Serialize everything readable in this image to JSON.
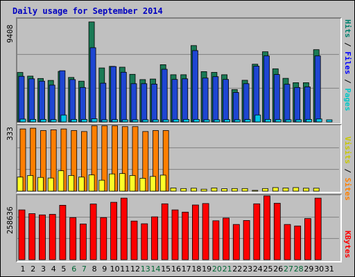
{
  "title": "Daily usage for September 2014",
  "colors": {
    "hits": "#1a7a55",
    "files": "#1e46d2",
    "pages": "#00c8e6",
    "visits": "#ffff28",
    "sites": "#ff7f00",
    "kbytes": "#ff0000",
    "weekday_label": "#000000",
    "weekend_label": "#006633",
    "label_hits": "#00806e",
    "label_files": "#0000ff",
    "label_pages": "#00c8c8",
    "label_visits": "#c8c800",
    "label_sites": "#ff8000",
    "label_kbytes": "#ff0000"
  },
  "legend": {
    "top": [
      {
        "text": "Hits",
        "color": "#00806e"
      },
      {
        "text": " / ",
        "color": "#000000"
      },
      {
        "text": "Files",
        "color": "#0000ff"
      },
      {
        "text": " / ",
        "color": "#000000"
      },
      {
        "text": "Pages",
        "color": "#00c8c8"
      }
    ],
    "middle": [
      {
        "text": "Visits",
        "color": "#c8c800"
      },
      {
        "text": " / ",
        "color": "#000000"
      },
      {
        "text": "Sites",
        "color": "#ff8000"
      }
    ],
    "bottom": [
      {
        "text": "KBytes",
        "color": "#ff0000"
      }
    ]
  },
  "chart_data": [
    {
      "type": "bar",
      "panel": "hits-files-pages",
      "max_label": "9408",
      "ylim": [
        0,
        9408
      ],
      "categories": [
        "1",
        "2",
        "3",
        "4",
        "5",
        "6",
        "7",
        "8",
        "9",
        "10",
        "11",
        "12",
        "13",
        "14",
        "15",
        "16",
        "17",
        "18",
        "19",
        "20",
        "21",
        "22",
        "23",
        "24",
        "25",
        "26",
        "27",
        "28",
        "29",
        "30",
        "31"
      ],
      "weekend": [
        "6",
        "7",
        "13",
        "14",
        "20",
        "21",
        "27",
        "28"
      ],
      "series": [
        {
          "name": "Hits",
          "values": [
            4600,
            4260,
            4040,
            3860,
            4700,
            4140,
            3790,
            9300,
            5020,
            5170,
            5090,
            4430,
            3940,
            3990,
            5320,
            4390,
            4390,
            7100,
            4680,
            4610,
            4390,
            3010,
            3870,
            5370,
            6530,
            4940,
            4050,
            3650,
            3650,
            6720,
            0
          ]
        },
        {
          "name": "Files",
          "values": [
            4240,
            4010,
            3790,
            3420,
            4760,
            3940,
            3200,
            6900,
            3600,
            5150,
            4620,
            3560,
            3560,
            3520,
            4900,
            3950,
            4010,
            6640,
            4080,
            4210,
            3950,
            2740,
            3560,
            5190,
            6140,
            4410,
            3500,
            3200,
            3260,
            6140,
            0
          ]
        },
        {
          "name": "Pages",
          "values": [
            260,
            230,
            230,
            210,
            640,
            230,
            230,
            290,
            200,
            210,
            200,
            200,
            200,
            200,
            200,
            230,
            230,
            230,
            200,
            200,
            210,
            200,
            220,
            640,
            230,
            210,
            200,
            200,
            230,
            270,
            0
          ]
        }
      ]
    },
    {
      "type": "bar",
      "panel": "visits-sites",
      "max_label": "333",
      "ylim": [
        0,
        333
      ],
      "categories": [
        "1",
        "2",
        "3",
        "4",
        "5",
        "6",
        "7",
        "8",
        "9",
        "10",
        "11",
        "12",
        "13",
        "14",
        "15",
        "16",
        "17",
        "18",
        "19",
        "20",
        "21",
        "22",
        "23",
        "24",
        "25",
        "26",
        "27",
        "28",
        "29",
        "30",
        "31"
      ],
      "weekend": [
        "6",
        "7",
        "13",
        "14",
        "20",
        "21",
        "27",
        "28"
      ],
      "series": [
        {
          "name": "Sites",
          "values": [
            318,
            322,
            310,
            314,
            318,
            310,
            305,
            334,
            334,
            334,
            330,
            330,
            305,
            310,
            310,
            0,
            0,
            0,
            0,
            0,
            0,
            0,
            0,
            0,
            0,
            0,
            0,
            0,
            0,
            0,
            0
          ]
        },
        {
          "name": "Visits",
          "values": [
            72,
            80,
            70,
            67,
            104,
            80,
            72,
            83,
            56,
            88,
            90,
            80,
            66,
            75,
            82,
            16,
            13,
            15,
            10,
            16,
            12,
            13,
            13,
            4,
            13,
            18,
            16,
            18,
            15,
            15,
            0
          ]
        }
      ]
    },
    {
      "type": "bar",
      "panel": "kbytes",
      "max_label": "258636",
      "ylim": [
        0,
        258636
      ],
      "categories": [
        "1",
        "2",
        "3",
        "4",
        "5",
        "6",
        "7",
        "8",
        "9",
        "10",
        "11",
        "12",
        "13",
        "14",
        "15",
        "16",
        "17",
        "18",
        "19",
        "20",
        "21",
        "22",
        "23",
        "24",
        "25",
        "26",
        "27",
        "28",
        "29",
        "30",
        "31"
      ],
      "weekend": [
        "6",
        "7",
        "13",
        "14",
        "20",
        "21",
        "27",
        "28"
      ],
      "series": [
        {
          "name": "KBytes",
          "values": [
            202000,
            187000,
            182000,
            184000,
            221000,
            171000,
            145000,
            226000,
            171000,
            233000,
            250000,
            157000,
            146000,
            174000,
            227000,
            202000,
            193000,
            222000,
            228000,
            158000,
            169000,
            143000,
            159000,
            227000,
            259000,
            229000,
            143000,
            137000,
            167000,
            250000,
            0
          ]
        }
      ]
    }
  ]
}
